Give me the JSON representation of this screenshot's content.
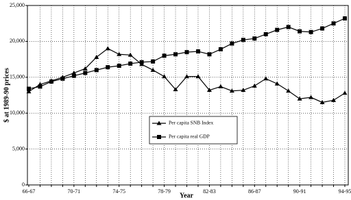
{
  "chart_data": {
    "type": "line",
    "x_label": "Year",
    "y_label": "$ at 1989-90 prices",
    "categories": [
      "66-67",
      null,
      null,
      null,
      "70-71",
      null,
      null,
      null,
      "74-75",
      null,
      null,
      null,
      "78-79",
      null,
      null,
      null,
      "82-83",
      null,
      null,
      null,
      "86-87",
      null,
      null,
      null,
      "90-91",
      null,
      null,
      null,
      "94-95"
    ],
    "series": [
      {
        "name": "Per capita SNB Index",
        "color": "#000000",
        "marker": "triangle",
        "values": [
          13000,
          14000,
          14500,
          15000,
          15600,
          16200,
          17800,
          19000,
          18200,
          18100,
          16800,
          16000,
          15100,
          13300,
          15100,
          15100,
          13200,
          13700,
          13100,
          13200,
          13800,
          14800,
          14100,
          13100,
          12000,
          12200,
          11500,
          11800,
          12800
        ]
      },
      {
        "name": "Per capita real GDP",
        "color": "#000000",
        "marker": "square",
        "values": [
          13400,
          13700,
          14400,
          14800,
          15200,
          15600,
          16000,
          16400,
          16600,
          16900,
          17100,
          17200,
          18000,
          18200,
          18500,
          18600,
          18200,
          18900,
          19700,
          20200,
          20400,
          21000,
          21600,
          22000,
          21400,
          21300,
          21800,
          22500,
          23200
        ]
      }
    ],
    "ylim": [
      0,
      25000
    ],
    "yticks": [
      0,
      {
        "value": 5000,
        "label": "5,000"
      },
      {
        "value": 10000,
        "label": "10,000"
      },
      {
        "value": 15000,
        "label": "15,000"
      },
      {
        "value": 20000,
        "label": "20,000"
      },
      {
        "value": 25000,
        "label": "25,000"
      }
    ],
    "grid": true,
    "legend": "center"
  }
}
